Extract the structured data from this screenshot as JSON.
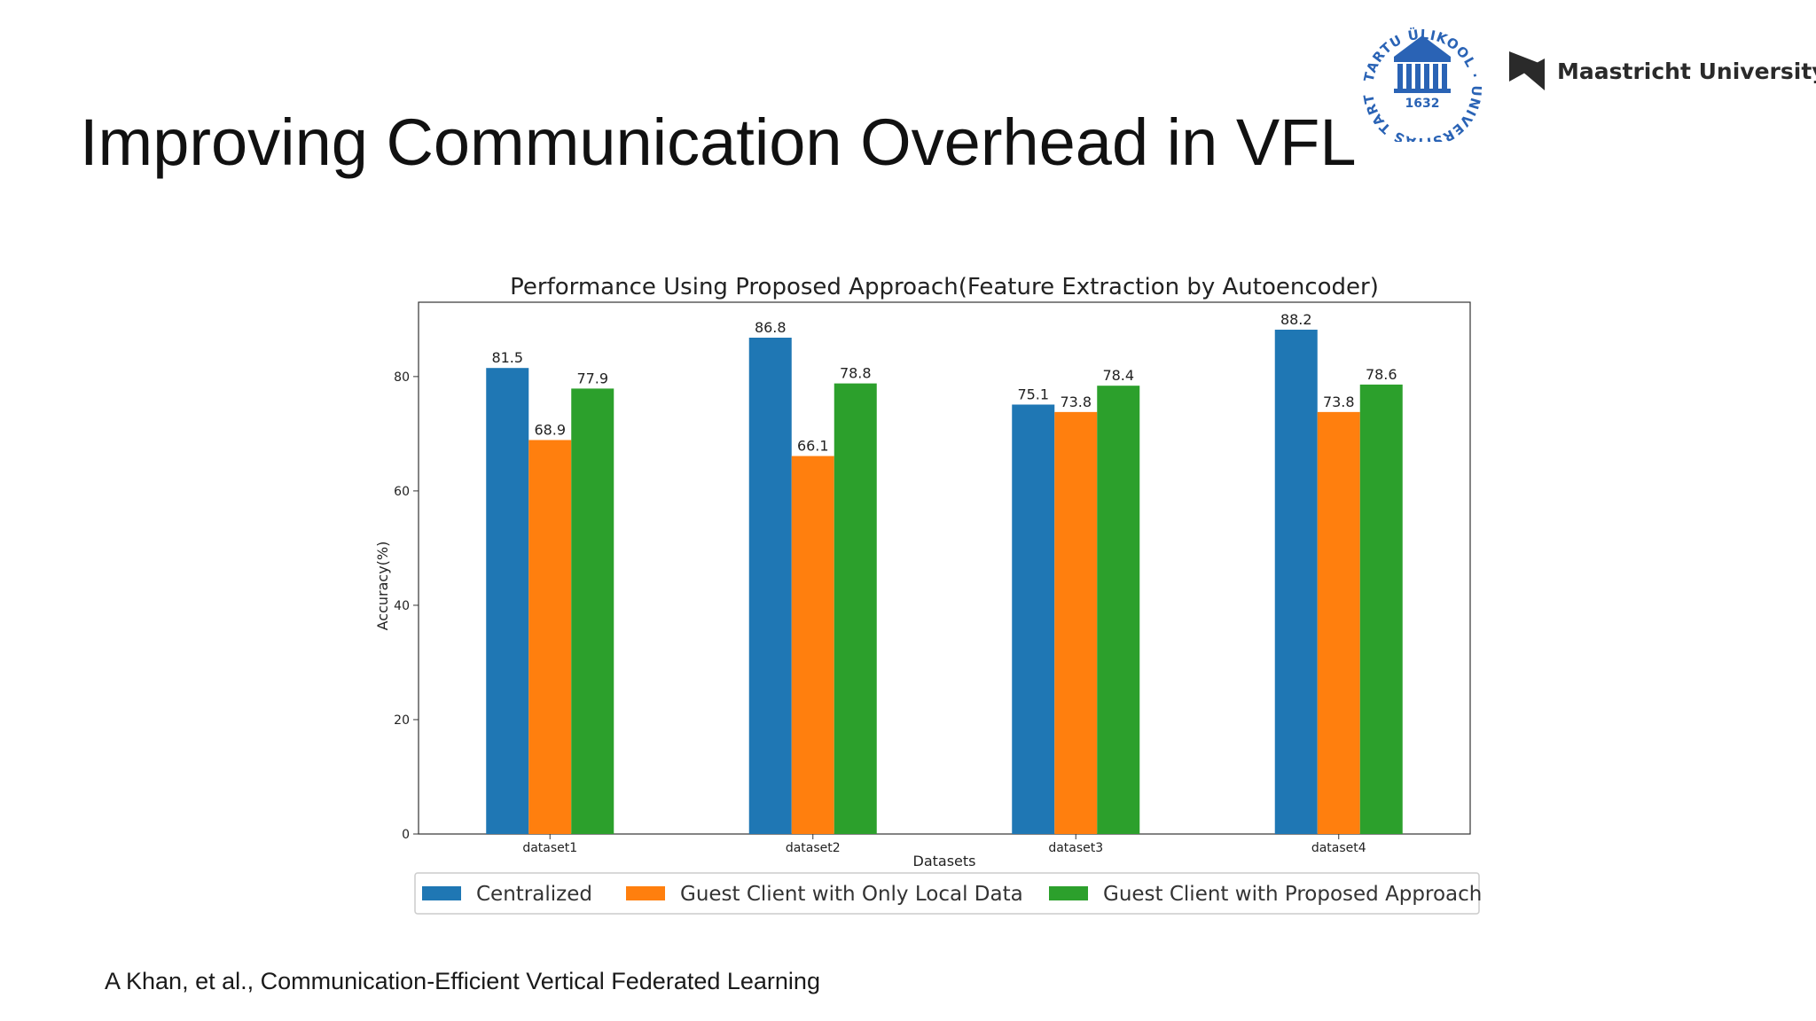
{
  "slide": {
    "title": "Improving Communication Overhead in VFL",
    "footnote": "A Khan, et al., Communication-Efficient Vertical Federated Learning"
  },
  "logos": {
    "tartu": {
      "ring_text": "TARTU ÜLIKOOL · UNIVERSITAS TARTUENSIS",
      "year": "1632",
      "color": "#2a63b5"
    },
    "maastricht": {
      "name": "Maastricht University",
      "mark_letters": "UM",
      "color": "#2a2a2a"
    }
  },
  "chart_data": {
    "type": "bar",
    "title": "Performance Using Proposed Approach(Feature Extraction by Autoencoder)",
    "xlabel": "Datasets",
    "ylabel": "Accuracy(%)",
    "categories": [
      "dataset1",
      "dataset2",
      "dataset3",
      "dataset4"
    ],
    "ylim": [
      0,
      93
    ],
    "yticks": [
      0,
      20,
      40,
      60,
      80
    ],
    "grid": false,
    "legend_position": "bottom",
    "series": [
      {
        "name": "Centralized",
        "values": [
          81.5,
          86.8,
          75.1,
          88.2
        ],
        "labels": [
          "81.5",
          "86.8",
          "75.1",
          "88.2"
        ],
        "color": "#1f77b4"
      },
      {
        "name": "Guest Client with Only Local Data",
        "values": [
          68.9,
          66.1,
          73.8,
          73.8
        ],
        "labels": [
          "68.9",
          "66.1",
          "73.8",
          "73.8"
        ],
        "color": "#ff7f0e"
      },
      {
        "name": "Guest Client with Proposed Approach",
        "values": [
          77.9,
          78.8,
          78.4,
          78.6
        ],
        "labels": [
          "77.9",
          "78.8",
          "78.4",
          "78.6"
        ],
        "color": "#2ca02c"
      }
    ]
  }
}
